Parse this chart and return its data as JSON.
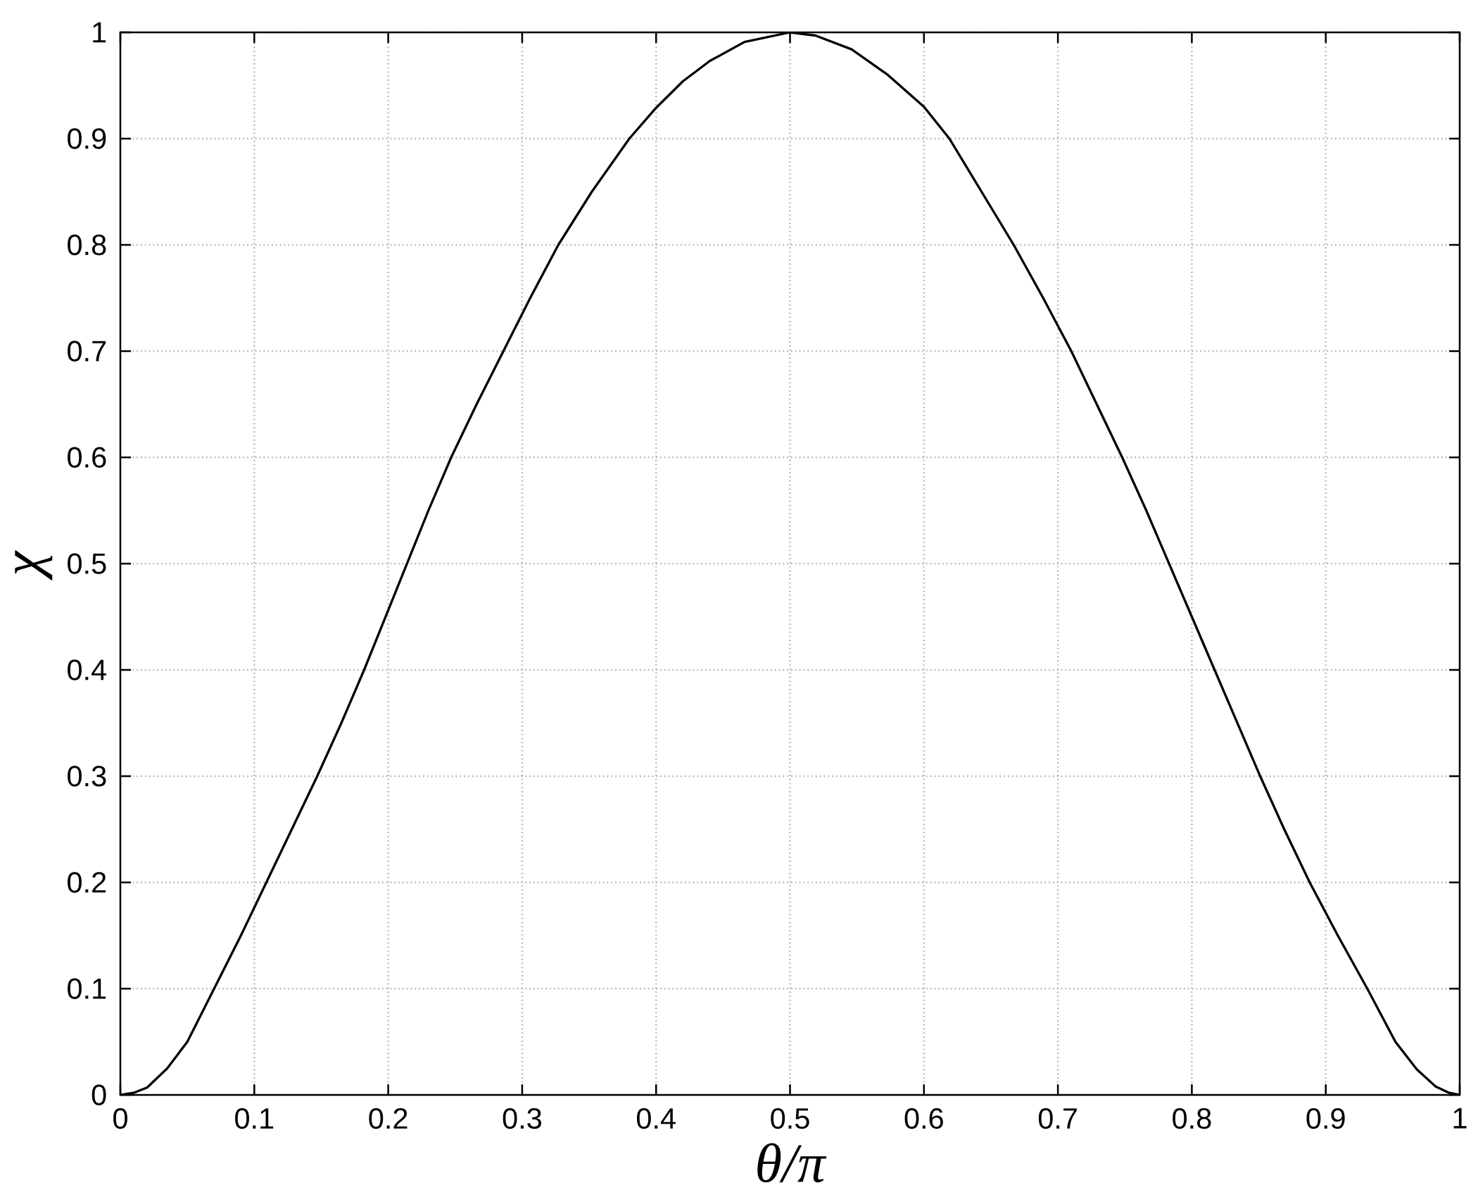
{
  "chart_data": {
    "type": "line",
    "xlabel": "θ/π",
    "ylabel": "χ",
    "x": [
      0,
      0.01,
      0.02,
      0.035,
      0.05,
      0.07,
      0.09,
      0.109,
      0.128,
      0.147,
      0.165,
      0.182,
      0.198,
      0.214,
      0.23,
      0.247,
      0.266,
      0.286,
      0.306,
      0.327,
      0.352,
      0.38,
      0.4,
      0.42,
      0.44,
      0.466,
      0.5,
      0.519,
      0.546,
      0.573,
      0.6,
      0.619,
      0.643,
      0.667,
      0.689,
      0.71,
      0.729,
      0.748,
      0.766,
      0.783,
      0.8,
      0.817,
      0.834,
      0.851,
      0.869,
      0.888,
      0.909,
      0.931,
      0.952,
      0.968,
      0.982,
      0.992,
      1
    ],
    "series": [
      {
        "color": "#000000",
        "values": [
          0,
          0.002,
          0.007,
          0.025,
          0.05,
          0.1,
          0.15,
          0.2,
          0.25,
          0.3,
          0.35,
          0.4,
          0.45,
          0.5,
          0.55,
          0.6,
          0.65,
          0.7,
          0.75,
          0.8,
          0.85,
          0.9,
          0.929,
          0.954,
          0.973,
          0.991,
          1.0,
          0.997,
          0.984,
          0.96,
          0.93,
          0.9,
          0.85,
          0.8,
          0.75,
          0.7,
          0.65,
          0.6,
          0.55,
          0.5,
          0.45,
          0.4,
          0.35,
          0.3,
          0.25,
          0.2,
          0.15,
          0.1,
          0.05,
          0.024,
          0.008,
          0.002,
          0
        ]
      }
    ],
    "xlim": [
      0,
      1
    ],
    "ylim": [
      0,
      1
    ],
    "xticks": [
      0,
      0.1,
      0.2,
      0.3,
      0.4,
      0.5,
      0.6,
      0.7,
      0.8,
      0.9,
      1
    ],
    "yticks": [
      0,
      0.1,
      0.2,
      0.3,
      0.4,
      0.5,
      0.6,
      0.7,
      0.8,
      0.9,
      1
    ],
    "grid": true,
    "marker": "none",
    "line_style": "solid"
  }
}
